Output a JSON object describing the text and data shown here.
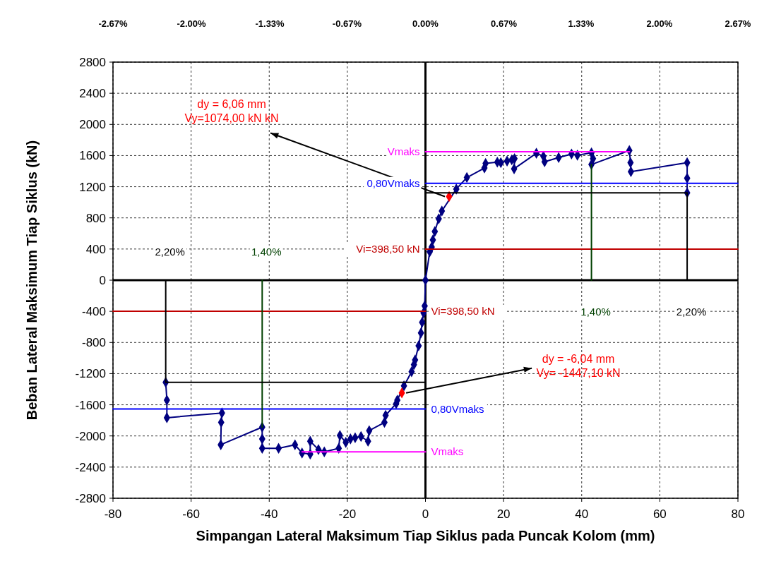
{
  "chart_data": {
    "type": "line",
    "xlabel": "Simpangan Lateral Maksimum Tiap Siklus pada Puncak Kolom (mm)",
    "ylabel": "Beban Lateral Maksimum Tiap Siklus (kN)",
    "xlim": [
      -80,
      80
    ],
    "xticks": [
      -80,
      -60,
      -40,
      -20,
      0,
      20,
      40,
      60,
      80
    ],
    "ylim": [
      -2800,
      2800
    ],
    "yticks": [
      -2800,
      -2400,
      -2000,
      -1600,
      -1200,
      -800,
      -400,
      0,
      400,
      800,
      1200,
      1600,
      2000,
      2400,
      2800
    ],
    "x2lim": [
      -2.67,
      2.67
    ],
    "x2ticks": [
      {
        "value": -2.67,
        "label": "-2.67%"
      },
      {
        "value": -2,
        "label": "-2.00%"
      },
      {
        "value": -1.33,
        "label": "-1.33%"
      },
      {
        "value": -0.67,
        "label": "-0.67%"
      },
      {
        "value": 0,
        "label": "0.00%"
      },
      {
        "value": 0.67,
        "label": "0.67%"
      },
      {
        "value": 1.33,
        "label": "1.33%"
      },
      {
        "value": 2,
        "label": "2.00%"
      },
      {
        "value": 2.67,
        "label": "2.67%"
      }
    ],
    "grid": true,
    "marker": "diamond",
    "line_style": "solid",
    "series": [
      {
        "color": "#000080",
        "x": [
          -66.5,
          -66.2,
          -66.2,
          -52.1,
          -52.3,
          -52.4,
          -41.8,
          -41.8,
          -41.8,
          -37.6,
          -33.4,
          -31.6,
          -29.5,
          -29.5,
          -27.4,
          -25.9,
          -22.2,
          -21.9,
          -20.4,
          -19.2,
          -18,
          -16.5,
          -14.7,
          -14.4,
          -10.5,
          -10.2,
          -7.5,
          -7.2,
          -5.5,
          -3.55,
          -2.95,
          -2.65,
          -1.75,
          -1.15,
          -0.85,
          -0.5,
          -0.2,
          0,
          1.1,
          1.6,
          1.9,
          2.4,
          3.4,
          4.2,
          7.9,
          10.6,
          15.1,
          15.4,
          18.4,
          19.3,
          20.9,
          22.1,
          22.8,
          22.7,
          28.4,
          30.2,
          30.5,
          34.1,
          37.4,
          38.9,
          42.5,
          42.9,
          42.5,
          52.2,
          52.5,
          52.6,
          67,
          67,
          67
        ],
        "values": [
          -1312,
          -1540,
          -1766,
          -1705,
          -1826,
          -2113,
          -1887,
          -2038,
          -2159,
          -2159,
          -2113,
          -2219,
          -2234,
          -2068,
          -2174,
          -2204,
          -2159,
          -1993,
          -2083,
          -2038,
          -2023,
          -2007,
          -2068,
          -1932,
          -1826,
          -1735,
          -1585,
          -1540,
          -1357,
          -1176,
          -1085,
          -1025,
          -843,
          -677,
          -541,
          -420,
          -330,
          0,
          365,
          425,
          517,
          626,
          789,
          888,
          1170,
          1318,
          1440,
          1500,
          1515,
          1508,
          1530,
          1545,
          1560,
          1430,
          1630,
          1590,
          1520,
          1575,
          1620,
          1605,
          1635,
          1560,
          1485,
          1665,
          1508,
          1394,
          1508,
          1309,
          1122
        ]
      },
      {
        "type": "scatter",
        "color": "#ff0000",
        "x": [
          6.06,
          -6.04
        ],
        "values": [
          1074,
          -1447.1
        ]
      },
      {
        "name": "Vmaks",
        "color": "#ff00ff",
        "marker": "none",
        "x": [
          0,
          52.2
        ],
        "values": [
          1650,
          1650
        ]
      },
      {
        "name": "Vmaks",
        "color": "#ff00ff",
        "marker": "none",
        "x": [
          0,
          -31.6
        ],
        "values": [
          -2204,
          -2204
        ]
      },
      {
        "name": "0,80Vmaks",
        "color": "#0000ff",
        "marker": "none",
        "x": [
          0,
          80
        ],
        "values": [
          1243,
          1243
        ]
      },
      {
        "name": "0,80Vmaks",
        "color": "#0000ff",
        "marker": "none",
        "x": [
          0,
          -80
        ],
        "values": [
          -1654,
          -1654
        ]
      },
      {
        "name": "Vi=398,50 kN",
        "color": "#c00000",
        "marker": "none",
        "x": [
          0,
          80
        ],
        "values": [
          398.5,
          398.5
        ]
      },
      {
        "name": "Vi=398,50 kN",
        "color": "#c00000",
        "marker": "none",
        "x": [
          0,
          -80
        ],
        "values": [
          -398.5,
          -398.5
        ]
      },
      {
        "name": "1,40%",
        "color": "#004000",
        "marker": "none",
        "x": [
          42.5,
          42.5
        ],
        "values": [
          0,
          1485
        ]
      },
      {
        "name": "1,40%",
        "color": "#004000",
        "marker": "none",
        "x": [
          -41.8,
          -41.8
        ],
        "values": [
          0,
          -1887
        ]
      },
      {
        "name": "2,20%",
        "color": "#000000",
        "marker": "none",
        "x": [
          67,
          67,
          0
        ],
        "values": [
          0,
          1122,
          1122
        ]
      },
      {
        "name": "2,20%",
        "color": "#000000",
        "marker": "none",
        "x": [
          -66.5,
          -66.5,
          0
        ],
        "values": [
          0,
          -1312,
          -1312
        ]
      }
    ],
    "annotations": [
      {
        "text": "dy = 6,06 mm\nVy=1074,00 kN kN",
        "x": 6.06,
        "y": 1074
      },
      {
        "text": "dy = -6,04 mm\nVy= -1447,10 kN",
        "x": -6.04,
        "y": -1447.1
      }
    ]
  }
}
